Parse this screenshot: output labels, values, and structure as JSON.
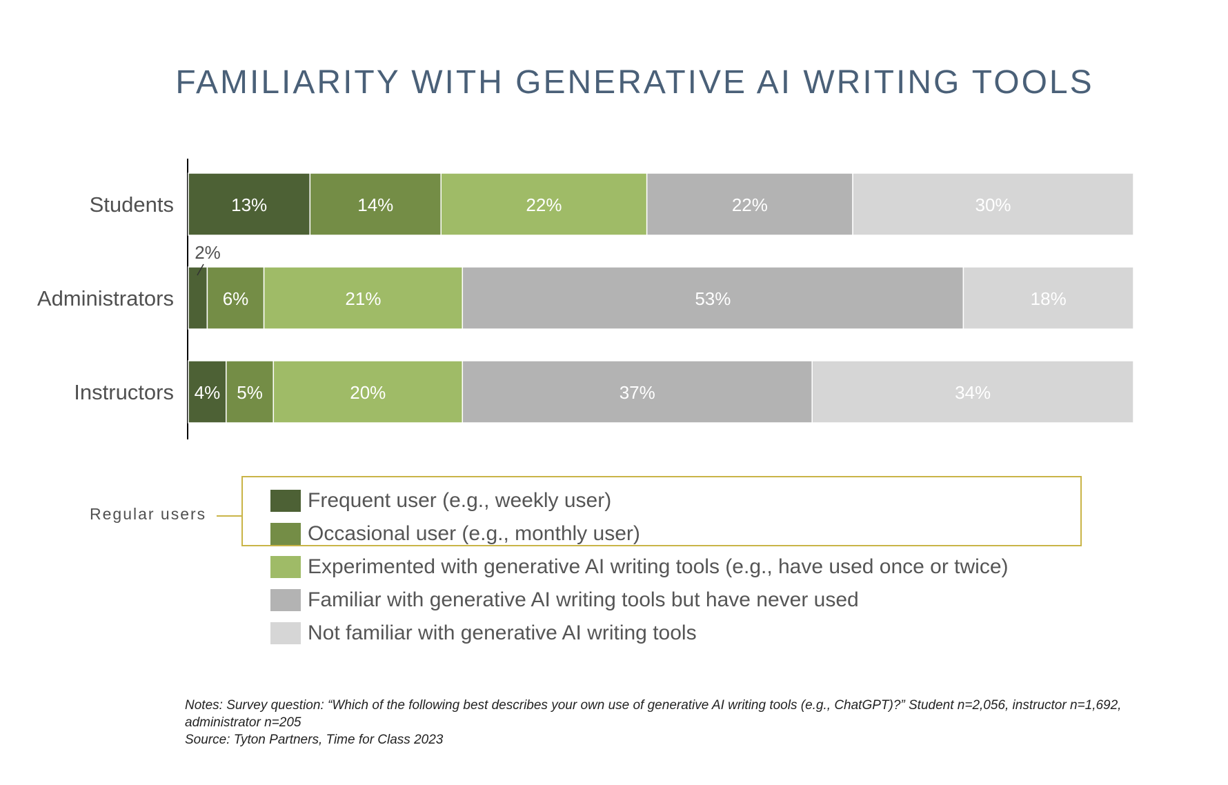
{
  "chart_data": {
    "type": "bar",
    "orientation": "horizontal-stacked-100",
    "title": "FAMILIARITY WITH GENERATIVE AI WRITING TOOLS",
    "categories": [
      "Students",
      "Administrators",
      "Instructors"
    ],
    "series": [
      {
        "name": "Frequent user (e.g., weekly user)",
        "color": "#4d6135",
        "values": [
          13,
          2,
          4
        ],
        "labels": [
          "13%",
          "2%",
          "4%"
        ]
      },
      {
        "name": "Occasional user (e.g., monthly user)",
        "color": "#748d46",
        "values": [
          14,
          6,
          5
        ],
        "labels": [
          "14%",
          "6%",
          "5%"
        ]
      },
      {
        "name": "Experimented with generative AI writing tools (e.g., have used once or twice)",
        "color": "#9fbb67",
        "values": [
          22,
          21,
          20
        ],
        "labels": [
          "22%",
          "21%",
          "20%"
        ]
      },
      {
        "name": "Familiar with generative AI writing tools but have never used",
        "color": "#b3b3b3",
        "values": [
          22,
          53,
          37
        ],
        "labels": [
          "22%",
          "53%",
          "37%"
        ]
      },
      {
        "name": "Not familiar with generative AI writing tools",
        "color": "#d6d6d6",
        "values": [
          30,
          18,
          34
        ],
        "labels": [
          "30%",
          "18%",
          "34%"
        ]
      }
    ],
    "xlim": [
      0,
      100
    ],
    "grid": false,
    "legend_position": "bottom"
  },
  "annotations": {
    "regular_users_label": "Regular users"
  },
  "notes": {
    "line1": "Notes: Survey question: “Which of the following best describes your own use of generative AI writing tools (e.g., ChatGPT)?” Student n=2,056, instructor n=1,692, administrator n=205",
    "line2": "Source: Tyton Partners, Time for Class 2023"
  }
}
